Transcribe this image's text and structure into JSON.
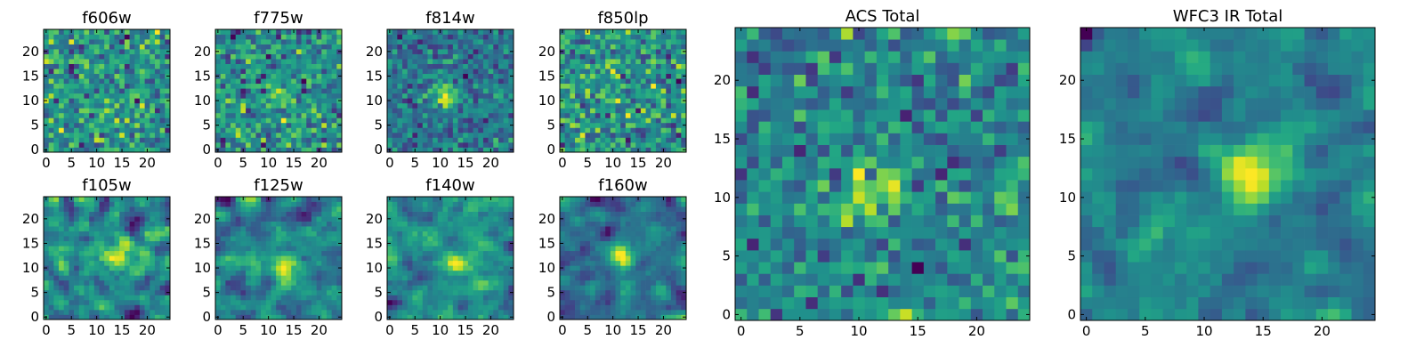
{
  "figure": {
    "description_type": "grid of pixel-intensity heatmaps"
  },
  "chart_data": [
    {
      "type": "heatmap",
      "title": "f606w",
      "grid_size": 25,
      "seed": 11,
      "peak": [
        12,
        8
      ],
      "peak_strength": 0.15,
      "noise": 0.85,
      "smooth": 0,
      "xlim": [
        -0.5,
        24.5
      ],
      "ylim": [
        -0.5,
        24.5
      ],
      "xticks": [
        0,
        5,
        10,
        15,
        20
      ],
      "yticks": [
        0,
        5,
        10,
        15,
        20
      ]
    },
    {
      "type": "heatmap",
      "title": "f775w",
      "grid_size": 25,
      "seed": 23,
      "peak": [
        12,
        11
      ],
      "peak_strength": 0.3,
      "noise": 0.8,
      "smooth": 0,
      "xlim": [
        -0.5,
        24.5
      ],
      "ylim": [
        -0.5,
        24.5
      ],
      "xticks": [
        0,
        5,
        10,
        15,
        20
      ],
      "yticks": [
        0,
        5,
        10,
        15,
        20
      ]
    },
    {
      "type": "heatmap",
      "title": "f814w",
      "grid_size": 25,
      "seed": 37,
      "peak": [
        11,
        11
      ],
      "peak_strength": 0.55,
      "noise": 0.65,
      "smooth": 0,
      "xlim": [
        -0.5,
        24.5
      ],
      "ylim": [
        -0.5,
        24.5
      ],
      "xticks": [
        0,
        5,
        10,
        15,
        20
      ],
      "yticks": [
        0,
        5,
        10,
        15,
        20
      ]
    },
    {
      "type": "heatmap",
      "title": "f850lp",
      "grid_size": 25,
      "seed": 41,
      "peak": [
        12,
        12
      ],
      "peak_strength": 0.1,
      "noise": 0.9,
      "smooth": 0,
      "xlim": [
        -0.5,
        24.5
      ],
      "ylim": [
        -0.5,
        24.5
      ],
      "xticks": [
        0,
        5,
        10,
        15,
        20
      ],
      "yticks": [
        0,
        5,
        10,
        15,
        20
      ]
    },
    {
      "type": "heatmap",
      "title": "f105w",
      "grid_size": 25,
      "seed": 53,
      "peak": [
        14,
        13
      ],
      "peak_strength": 0.45,
      "noise": 0.7,
      "smooth": 1,
      "xlim": [
        -0.5,
        24.5
      ],
      "ylim": [
        -0.5,
        24.5
      ],
      "xticks": [
        0,
        5,
        10,
        15,
        20
      ],
      "yticks": [
        0,
        5,
        10,
        15,
        20
      ]
    },
    {
      "type": "heatmap",
      "title": "f125w",
      "grid_size": 25,
      "seed": 67,
      "peak": [
        13,
        10
      ],
      "peak_strength": 0.5,
      "noise": 0.7,
      "smooth": 1,
      "xlim": [
        -0.5,
        24.5
      ],
      "ylim": [
        -0.5,
        24.5
      ],
      "xticks": [
        0,
        5,
        10,
        15,
        20
      ],
      "yticks": [
        0,
        5,
        10,
        15,
        20
      ]
    },
    {
      "type": "heatmap",
      "title": "f140w",
      "grid_size": 25,
      "seed": 79,
      "peak": [
        13,
        11
      ],
      "peak_strength": 0.55,
      "noise": 0.65,
      "smooth": 1,
      "xlim": [
        -0.5,
        24.5
      ],
      "ylim": [
        -0.5,
        24.5
      ],
      "xticks": [
        0,
        5,
        10,
        15,
        20
      ],
      "yticks": [
        0,
        5,
        10,
        15,
        20
      ]
    },
    {
      "type": "heatmap",
      "title": "f160w",
      "grid_size": 25,
      "seed": 83,
      "peak": [
        12,
        12
      ],
      "peak_strength": 0.65,
      "noise": 0.6,
      "smooth": 1,
      "xlim": [
        -0.5,
        24.5
      ],
      "ylim": [
        -0.5,
        24.5
      ],
      "xticks": [
        0,
        5,
        10,
        15,
        20
      ],
      "yticks": [
        0,
        5,
        10,
        15,
        20
      ]
    },
    {
      "type": "heatmap",
      "title": "ACS Total",
      "grid_size": 25,
      "seed": 97,
      "peak": [
        11,
        10
      ],
      "peak_strength": 0.5,
      "noise": 0.75,
      "smooth": 0,
      "xlim": [
        -0.5,
        24.5
      ],
      "ylim": [
        -0.5,
        24.5
      ],
      "xticks": [
        0,
        5,
        10,
        15,
        20
      ],
      "yticks": [
        0,
        5,
        10,
        15,
        20
      ]
    },
    {
      "type": "heatmap",
      "title": "WFC3 IR Total",
      "grid_size": 25,
      "seed": 101,
      "peak": [
        14,
        12
      ],
      "peak_strength": 0.7,
      "noise": 0.55,
      "smooth": 1,
      "xlim": [
        -0.5,
        24.5
      ],
      "ylim": [
        -0.5,
        24.5
      ],
      "xticks": [
        0,
        5,
        10,
        15,
        20
      ],
      "yticks": [
        0,
        5,
        10,
        15,
        20
      ]
    }
  ]
}
